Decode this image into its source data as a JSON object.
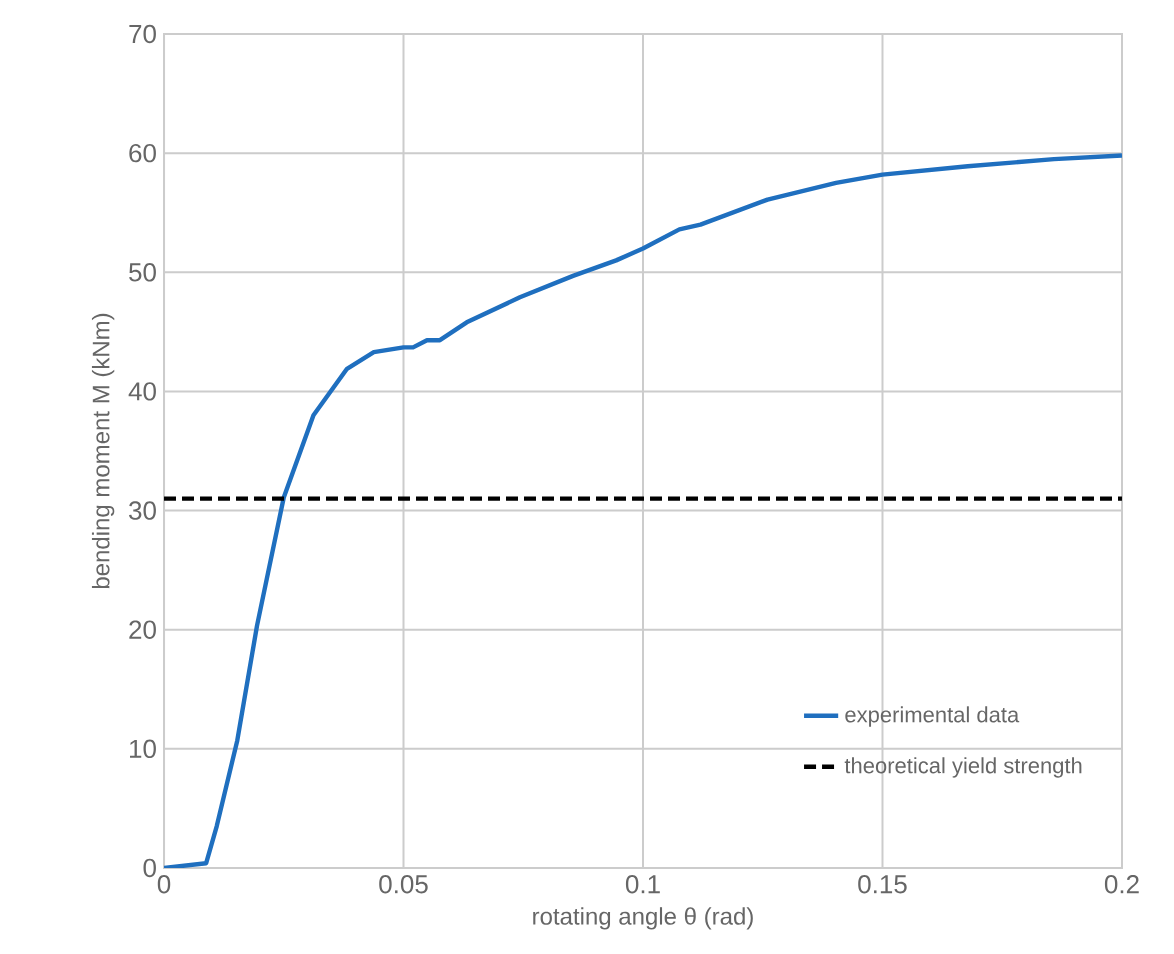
{
  "chart_data": {
    "type": "line",
    "xlabel": "rotating angle θ (rad)",
    "ylabel": "bending moment M (kNm)",
    "xlim": [
      0,
      0.2
    ],
    "ylim": [
      0,
      70
    ],
    "xticks": [
      0,
      0.05,
      0.1,
      0.15,
      0.2
    ],
    "yticks": [
      0,
      10,
      20,
      30,
      40,
      50,
      60,
      70
    ],
    "grid": true,
    "legend": "bottom right",
    "marker": "none",
    "series": [
      {
        "name": "experimental data",
        "color": "#1f6fbf",
        "line_style": "solid",
        "x": [
          0,
          0.0088,
          0.011,
          0.0153,
          0.0194,
          0.025,
          0.0312,
          0.0382,
          0.0438,
          0.05,
          0.052,
          0.0549,
          0.0576,
          0.0632,
          0.0743,
          0.0854,
          0.0944,
          0.1,
          0.1076,
          0.112,
          0.126,
          0.1403,
          0.15,
          0.1678,
          0.1858,
          0.2
        ],
        "values": [
          0,
          0.4,
          3.5,
          10.7,
          20.3,
          31.1,
          38,
          41.9,
          43.3,
          43.7,
          43.7,
          44.3,
          44.3,
          45.8,
          47.9,
          49.7,
          51,
          52,
          53.6,
          54,
          56.1,
          57.5,
          58.2,
          58.9,
          59.5,
          59.8
        ]
      },
      {
        "name": "theoretical yield strength",
        "color": "#000000",
        "line_style": "dashed",
        "x": [
          0,
          0.2
        ],
        "values": [
          31,
          31
        ]
      }
    ]
  }
}
